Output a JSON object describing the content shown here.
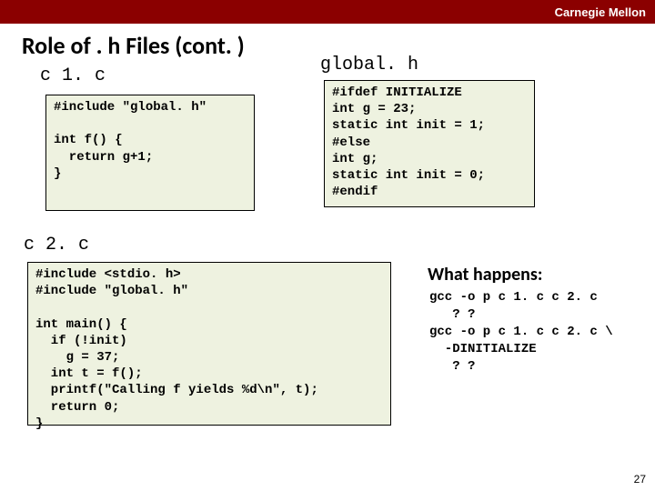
{
  "header": {
    "institution": "Carnegie Mellon"
  },
  "title": "Role of . h Files (cont. )",
  "labels": {
    "c1": "c 1. c",
    "c2": "c 2. c",
    "globalh": "global. h",
    "what_happens": "What happens:"
  },
  "code": {
    "c1": "#include \"global. h\"\n\nint f() {\n  return g+1;\n}",
    "global": "#ifdef INITIALIZE\nint g = 23;\nstatic int init = 1;\n#else\nint g;\nstatic int init = 0;\n#endif",
    "c2": "#include <stdio. h>\n#include \"global. h\"\n\nint main() {\n  if (!init)\n    g = 37;\n  int t = f();\n  printf(\"Calling f yields %d\\n\", t);\n  return 0;\n}",
    "what_happens_body": "gcc -o p c 1. c c 2. c\n   ? ?\ngcc -o p c 1. c c 2. c \\\n  -DINITIALIZE\n   ? ?"
  },
  "page_number": "27",
  "style": {
    "header_bg": "#8b0000",
    "header_text_color": "#ffffff",
    "code_bg": "#eef2e0",
    "code_border": "#000000",
    "page_bg": "#ffffff"
  }
}
